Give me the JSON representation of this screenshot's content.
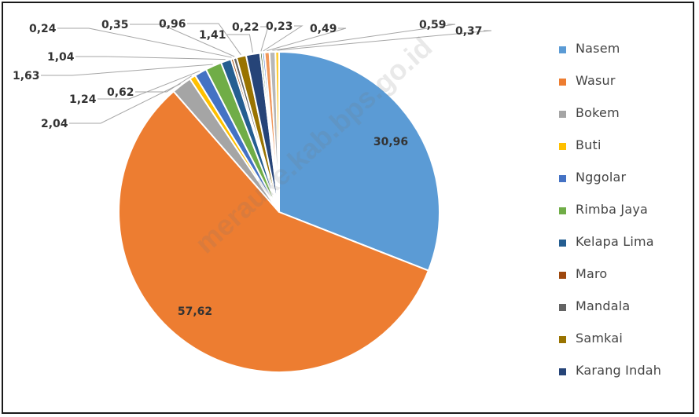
{
  "chart_data": {
    "type": "pie",
    "slices": [
      {
        "label": "Nasem",
        "value": 30.96,
        "value_label": "30,96",
        "color": "#5b9bd5"
      },
      {
        "label": "Wasur",
        "value": 57.62,
        "value_label": "57,62",
        "color": "#ed7d31"
      },
      {
        "label": "Bokem",
        "value": 2.04,
        "value_label": "2,04",
        "color": "#a5a5a5"
      },
      {
        "label": "Buti",
        "value": 0.62,
        "value_label": "0,62",
        "color": "#ffc000"
      },
      {
        "label": "Nggolar",
        "value": 1.24,
        "value_label": "1,24",
        "color": "#4472c4"
      },
      {
        "label": "Rimba Jaya",
        "value": 1.63,
        "value_label": "1,63",
        "color": "#70ad47"
      },
      {
        "label": "Kelapa Lima",
        "value": 1.04,
        "value_label": "1,04",
        "color": "#255e91"
      },
      {
        "label": "Maro",
        "value": 0.24,
        "value_label": "0,24",
        "color": "#9e480e"
      },
      {
        "label": "Mandala",
        "value": 0.35,
        "value_label": "0,35",
        "color": "#636363"
      },
      {
        "label": "Samkai",
        "value": 0.96,
        "value_label": "0,96",
        "color": "#997300"
      },
      {
        "label": "Karang Indah",
        "value": 1.41,
        "value_label": "1,41",
        "color": "#264478"
      },
      {
        "label": "",
        "value": 0.22,
        "value_label": "0,22",
        "color": "#43682b"
      },
      {
        "label": "",
        "value": 0.23,
        "value_label": "0,23",
        "color": "#698ed0"
      },
      {
        "label": "",
        "value": 0.49,
        "value_label": "0,49",
        "color": "#f1975a"
      },
      {
        "label": "",
        "value": 0.59,
        "value_label": "0,59",
        "color": "#b7b7b7"
      },
      {
        "label": "",
        "value": 0.37,
        "value_label": "0,37",
        "color": "#ffcd33"
      }
    ],
    "legend_position": "right",
    "start_angle": "12 o'clock, clockwise"
  },
  "legend": {
    "items": [
      {
        "label": "Nasem",
        "color": "#5b9bd5"
      },
      {
        "label": "Wasur",
        "color": "#ed7d31"
      },
      {
        "label": "Bokem",
        "color": "#a5a5a5"
      },
      {
        "label": "Buti",
        "color": "#ffc000"
      },
      {
        "label": "Nggolar",
        "color": "#4472c4"
      },
      {
        "label": "Rimba Jaya",
        "color": "#70ad47"
      },
      {
        "label": "Kelapa Lima",
        "color": "#255e91"
      },
      {
        "label": "Maro",
        "color": "#9e480e"
      },
      {
        "label": "Mandala",
        "color": "#636363"
      },
      {
        "label": "Samkai",
        "color": "#997300"
      },
      {
        "label": "Karang Indah",
        "color": "#264478"
      }
    ]
  },
  "watermark": "merauke.kab.bps.go.id"
}
